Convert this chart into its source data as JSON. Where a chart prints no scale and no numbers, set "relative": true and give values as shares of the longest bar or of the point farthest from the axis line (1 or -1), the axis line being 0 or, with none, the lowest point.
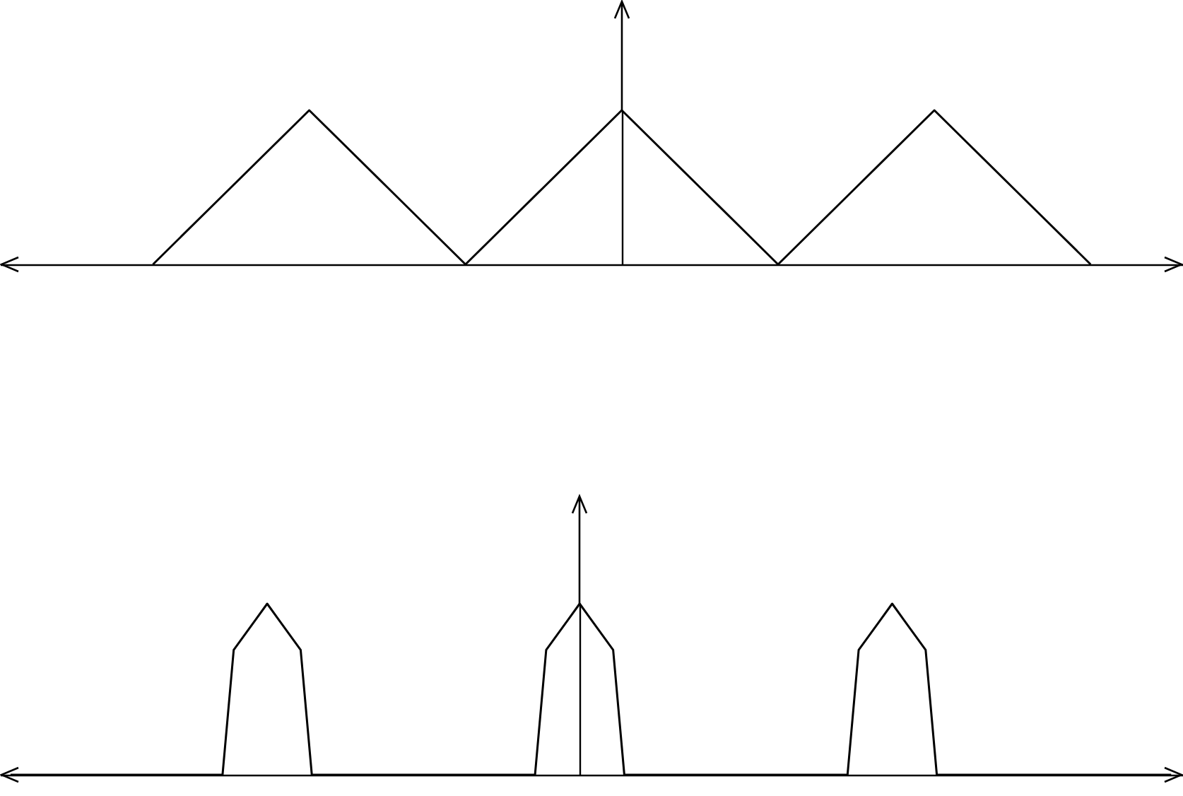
{
  "chart_data": [
    {
      "type": "line",
      "relative": true,
      "color": "#000000",
      "categories": [
        null,
        null,
        null,
        null,
        null,
        null,
        null,
        null,
        null,
        null,
        null,
        null,
        null,
        null,
        null
      ],
      "values": [
        null,
        0,
        0.5,
        1,
        0.5,
        0,
        0.5,
        1,
        0.5,
        0,
        0.5,
        1,
        0.5,
        0,
        null
      ]
    },
    {
      "type": "line",
      "relative": true,
      "color": "#000000",
      "categories": [
        null,
        null,
        null,
        null,
        null,
        null,
        null,
        null,
        null,
        null,
        null,
        null,
        null,
        null,
        null,
        null,
        null,
        null,
        null,
        null,
        null,
        null,
        null,
        null,
        null,
        null,
        null,
        null,
        null,
        null,
        null,
        null,
        null,
        null,
        null,
        null,
        null,
        null,
        null,
        null,
        null,
        null,
        null,
        null,
        null,
        null,
        null,
        null,
        null,
        null,
        null,
        null,
        null,
        null,
        null,
        null,
        null,
        null,
        null,
        null,
        null,
        null,
        null,
        null,
        null,
        null,
        null,
        null,
        null,
        null,
        null,
        null,
        null,
        null,
        null,
        null,
        null,
        null,
        null,
        null,
        null,
        null,
        null,
        null,
        null,
        null,
        null,
        null,
        null,
        null,
        null,
        null,
        null,
        null,
        null,
        null,
        null,
        null,
        null,
        null,
        null,
        null,
        null,
        null,
        null
      ],
      "values": [
        0,
        0,
        0,
        0,
        0,
        0,
        0,
        0,
        0,
        0,
        0,
        0,
        0,
        0,
        0,
        0,
        0,
        0,
        0,
        0,
        0.73,
        0.82,
        0.91,
        1,
        0.91,
        0.82,
        0.73,
        0,
        0,
        0,
        0,
        0,
        0,
        0,
        0,
        0,
        0,
        0,
        0,
        0,
        0,
        0,
        0,
        0,
        0,
        0,
        0,
        0,
        0.73,
        0.82,
        0.91,
        1,
        0.91,
        0.82,
        0.73,
        0,
        0,
        0,
        0,
        0,
        0,
        0,
        0,
        0,
        0,
        0,
        0,
        0,
        0,
        0,
        0,
        0,
        0,
        0,
        0,
        0,
        0.73,
        0.82,
        0.91,
        1,
        0.91,
        0.82,
        0.73,
        0,
        0,
        0,
        0,
        0,
        0,
        0,
        0,
        0,
        0,
        0,
        0,
        0,
        0,
        0,
        0,
        0,
        0,
        0,
        0,
        0,
        0
      ]
    }
  ]
}
